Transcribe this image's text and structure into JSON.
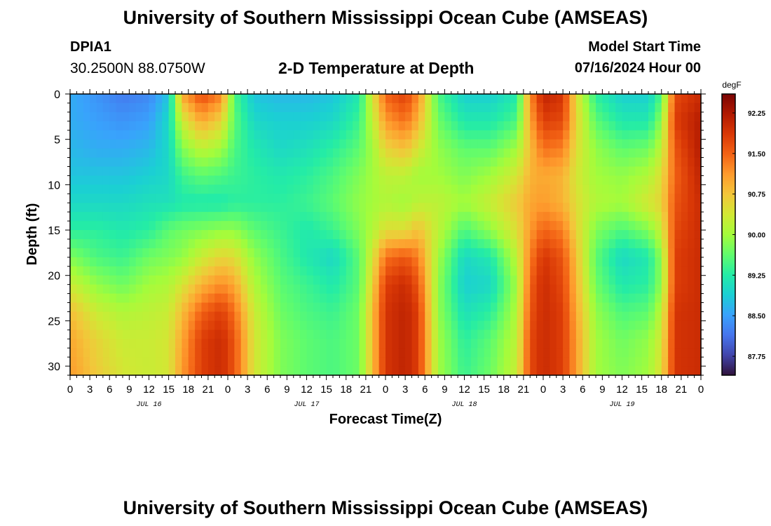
{
  "header": {
    "title": "University of Southern Mississippi Ocean Cube (AMSEAS)",
    "station": "DPIA1",
    "coords": "30.2500N  88.0750W",
    "subtitle": "2-D Temperature at Depth",
    "start_label": "Model Start Time",
    "start_value": "07/16/2024 Hour 00"
  },
  "footer": {
    "title": "University of Southern Mississippi Ocean Cube (AMSEAS)"
  },
  "chart_data": {
    "type": "heatmap",
    "title": "2-D Temperature at Depth",
    "xlabel": "Forecast Time(Z)",
    "ylabel": "Depth (ft)",
    "xlim": [
      0,
      96
    ],
    "ylim": [
      0,
      31
    ],
    "y_inverted": true,
    "x_ticks": [
      0,
      3,
      6,
      9,
      12,
      15,
      18,
      21,
      24,
      27,
      30,
      33,
      36,
      39,
      42,
      45,
      48,
      51,
      54,
      57,
      60,
      63,
      66,
      69,
      72,
      75,
      78,
      81,
      84,
      87,
      90,
      93,
      96
    ],
    "x_tick_labels": [
      "0",
      "3",
      "6",
      "9",
      "12",
      "15",
      "18",
      "21",
      "0",
      "3",
      "6",
      "9",
      "12",
      "15",
      "18",
      "21",
      "0",
      "3",
      "6",
      "9",
      "12",
      "15",
      "18",
      "21",
      "0",
      "3",
      "6",
      "9",
      "12",
      "15",
      "18",
      "21",
      "0"
    ],
    "date_labels": [
      {
        "hour": 12,
        "label": "JUL 16"
      },
      {
        "hour": 36,
        "label": "JUL 17"
      },
      {
        "hour": 60,
        "label": "JUL 18"
      },
      {
        "hour": 84,
        "label": "JUL 19"
      }
    ],
    "y_ticks": [
      0,
      5,
      10,
      15,
      20,
      25,
      30
    ],
    "y_tick_labels": [
      "0",
      "5",
      "10",
      "15",
      "20",
      "25",
      "30"
    ],
    "colorbar": {
      "unit": "degF",
      "range": [
        87.4,
        92.6
      ],
      "ticks": [
        87.75,
        88.5,
        89.25,
        90.0,
        90.75,
        91.5,
        92.25
      ],
      "tick_labels": [
        "87.75",
        "88.50",
        "89.25",
        "90.00",
        "90.75",
        "91.50",
        "92.25"
      ],
      "colors": [
        "#30123b",
        "#4145ab",
        "#4675ed",
        "#39a2fc",
        "#1bcfd4",
        "#24eca6",
        "#61fc6c",
        "#a4fc3b",
        "#d1e834",
        "#f3c63a",
        "#fe9b2d",
        "#f36315",
        "#d93806",
        "#b11901",
        "#7a0403"
      ]
    },
    "depths": [
      0,
      3,
      6,
      9,
      12,
      15,
      18,
      21,
      24,
      27,
      31
    ],
    "columns": [
      {
        "t": 0,
        "v": [
          88.6,
          88.6,
          88.7,
          88.8,
          89.0,
          89.3,
          89.8,
          90.3,
          90.8,
          91.0,
          91.1
        ]
      },
      {
        "t": 4,
        "v": [
          88.4,
          88.5,
          88.6,
          88.8,
          89.0,
          89.3,
          89.5,
          89.9,
          90.3,
          90.6,
          90.7
        ]
      },
      {
        "t": 8,
        "v": [
          88.2,
          88.4,
          88.6,
          88.8,
          89.0,
          89.2,
          89.4,
          89.7,
          90.1,
          90.3,
          90.4
        ]
      },
      {
        "t": 12,
        "v": [
          88.3,
          88.5,
          88.7,
          88.9,
          89.1,
          89.3,
          89.7,
          90.0,
          90.2,
          90.3,
          90.3
        ]
      },
      {
        "t": 15,
        "v": [
          88.8,
          89.0,
          89.0,
          89.0,
          89.1,
          89.6,
          89.8,
          90.1,
          90.3,
          90.4,
          90.4
        ]
      },
      {
        "t": 17,
        "v": [
          91.0,
          90.3,
          89.8,
          89.4,
          89.2,
          89.7,
          89.9,
          90.4,
          90.8,
          91.0,
          91.1
        ]
      },
      {
        "t": 20,
        "v": [
          91.7,
          91.0,
          90.2,
          89.6,
          89.2,
          89.8,
          90.3,
          90.9,
          91.5,
          91.8,
          91.8
        ]
      },
      {
        "t": 23,
        "v": [
          91.3,
          90.6,
          90.0,
          89.5,
          89.2,
          89.9,
          90.6,
          91.2,
          91.8,
          92.0,
          92.0
        ]
      },
      {
        "t": 25,
        "v": [
          89.5,
          89.6,
          89.5,
          89.4,
          89.3,
          89.9,
          90.5,
          91.0,
          91.4,
          91.6,
          91.6
        ]
      },
      {
        "t": 28,
        "v": [
          88.8,
          89.0,
          89.2,
          89.3,
          89.3,
          89.6,
          89.9,
          90.1,
          90.3,
          90.4,
          90.4
        ]
      },
      {
        "t": 32,
        "v": [
          88.7,
          88.9,
          89.0,
          89.2,
          89.3,
          89.4,
          89.5,
          89.6,
          89.7,
          89.8,
          89.8
        ]
      },
      {
        "t": 36,
        "v": [
          88.7,
          88.9,
          89.1,
          89.3,
          89.4,
          89.2,
          89.2,
          89.4,
          89.5,
          89.6,
          89.6
        ]
      },
      {
        "t": 40,
        "v": [
          88.8,
          89.0,
          89.3,
          89.5,
          89.6,
          89.4,
          89.0,
          89.2,
          89.4,
          89.5,
          89.5
        ]
      },
      {
        "t": 44,
        "v": [
          89.2,
          89.4,
          89.6,
          89.8,
          89.9,
          89.8,
          89.6,
          89.6,
          89.7,
          89.7,
          89.7
        ]
      },
      {
        "t": 46,
        "v": [
          90.4,
          90.2,
          90.0,
          90.0,
          90.0,
          90.1,
          90.4,
          90.6,
          90.8,
          90.8,
          90.8
        ]
      },
      {
        "t": 48,
        "v": [
          91.5,
          91.1,
          90.6,
          90.2,
          90.1,
          90.5,
          91.4,
          91.8,
          91.9,
          91.9,
          91.9
        ]
      },
      {
        "t": 51,
        "v": [
          91.8,
          91.4,
          90.8,
          90.2,
          90.0,
          90.5,
          91.6,
          92.0,
          92.1,
          92.1,
          92.1
        ]
      },
      {
        "t": 53,
        "v": [
          91.2,
          90.9,
          90.4,
          90.0,
          90.2,
          90.8,
          91.3,
          91.6,
          91.8,
          91.8,
          91.8
        ]
      },
      {
        "t": 56,
        "v": [
          89.5,
          89.7,
          89.9,
          90.0,
          90.2,
          90.2,
          90.0,
          89.9,
          89.9,
          90.0,
          90.0
        ]
      },
      {
        "t": 60,
        "v": [
          88.9,
          89.2,
          89.6,
          89.8,
          90.0,
          89.5,
          89.0,
          88.9,
          89.1,
          89.3,
          89.4
        ]
      },
      {
        "t": 64,
        "v": [
          88.9,
          89.2,
          89.6,
          90.0,
          90.3,
          89.9,
          89.2,
          89.0,
          89.3,
          89.6,
          89.7
        ]
      },
      {
        "t": 68,
        "v": [
          89.2,
          89.5,
          90.0,
          90.4,
          90.7,
          90.5,
          90.2,
          90.0,
          90.1,
          90.2,
          90.3
        ]
      },
      {
        "t": 70,
        "v": [
          91.2,
          91.0,
          90.8,
          90.9,
          91.0,
          91.1,
          91.3,
          91.5,
          91.6,
          91.7,
          91.7
        ]
      },
      {
        "t": 72,
        "v": [
          92.1,
          91.8,
          91.4,
          91.0,
          91.1,
          91.5,
          91.9,
          92.0,
          92.0,
          92.0,
          92.0
        ]
      },
      {
        "t": 75,
        "v": [
          91.9,
          91.7,
          91.3,
          90.9,
          90.9,
          91.3,
          91.6,
          91.7,
          91.8,
          91.8,
          91.8
        ]
      },
      {
        "t": 77,
        "v": [
          90.5,
          90.6,
          90.5,
          90.4,
          90.5,
          90.6,
          90.8,
          90.9,
          91.0,
          91.1,
          91.1
        ]
      },
      {
        "t": 80,
        "v": [
          89.3,
          89.6,
          89.9,
          90.0,
          90.1,
          89.8,
          89.6,
          89.7,
          89.9,
          90.0,
          90.0
        ]
      },
      {
        "t": 84,
        "v": [
          88.9,
          89.2,
          89.6,
          89.9,
          90.0,
          89.5,
          89.0,
          89.2,
          89.5,
          89.7,
          89.8
        ]
      },
      {
        "t": 88,
        "v": [
          88.9,
          89.2,
          89.7,
          90.1,
          90.4,
          89.8,
          89.2,
          89.3,
          89.6,
          89.9,
          90.0
        ]
      },
      {
        "t": 90,
        "v": [
          89.5,
          89.9,
          90.2,
          90.5,
          90.6,
          90.3,
          89.9,
          89.9,
          90.2,
          90.4,
          90.5
        ]
      },
      {
        "t": 92,
        "v": [
          91.7,
          91.8,
          91.6,
          91.5,
          91.6,
          91.7,
          91.8,
          91.8,
          91.9,
          91.9,
          91.9
        ]
      },
      {
        "t": 96,
        "v": [
          92.0,
          92.2,
          92.2,
          92.1,
          92.0,
          92.0,
          92.0,
          92.0,
          92.0,
          92.0,
          92.0
        ]
      }
    ]
  }
}
